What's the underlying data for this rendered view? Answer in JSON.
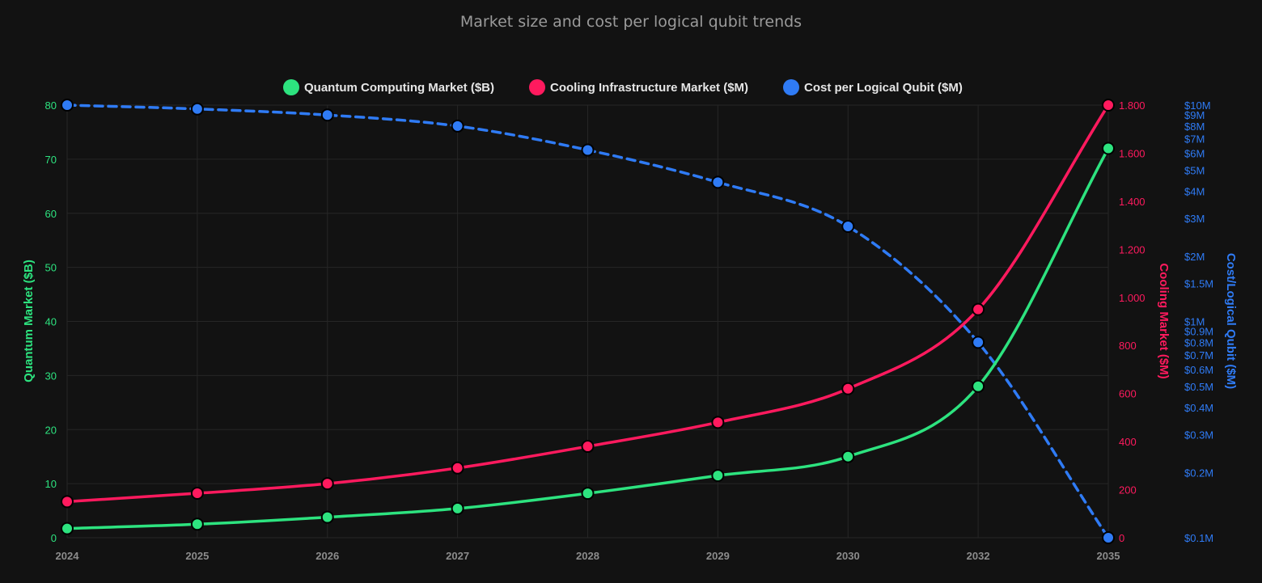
{
  "chart_data": {
    "type": "line",
    "title": "Market size and cost per logical qubit trends",
    "categories": [
      "2024",
      "2025",
      "2026",
      "2027",
      "2028",
      "2029",
      "2030",
      "2032",
      "2035"
    ],
    "series": [
      {
        "name": "Quantum Computing Market ($B)",
        "axis": "left",
        "color": "#2de37f",
        "dashed": false,
        "values": [
          1.7,
          2.5,
          3.8,
          5.4,
          8.2,
          11.5,
          15.0,
          28.0,
          72.0
        ]
      },
      {
        "name": "Cooling Infrastructure Market ($M)",
        "axis": "right1",
        "color": "#ff1a5e",
        "dashed": false,
        "values": [
          150,
          185,
          225,
          290,
          380,
          480,
          620,
          950,
          1800
        ]
      },
      {
        "name": "Cost per Logical Qubit ($M)",
        "axis": "right2",
        "color": "#2f7bf5",
        "dashed": true,
        "values": [
          10,
          9.6,
          9.0,
          8.0,
          6.2,
          4.4,
          2.75,
          0.8,
          0.1
        ]
      }
    ],
    "axes": {
      "left": {
        "label": "Quantum Market ($B)",
        "min": 0,
        "max": 80,
        "ticks": [
          0,
          10,
          20,
          30,
          40,
          50,
          60,
          70,
          80
        ],
        "tick_labels": [
          "0",
          "10",
          "20",
          "30",
          "40",
          "50",
          "60",
          "70",
          "80"
        ],
        "color": "#2de37f"
      },
      "right1": {
        "label": "Cooling Market ($M)",
        "min": 0,
        "max": 1800,
        "ticks": [
          0,
          200,
          400,
          600,
          800,
          1000,
          1200,
          1400,
          1600,
          1800
        ],
        "tick_labels": [
          "0",
          "200",
          "400",
          "600",
          "800",
          "1.000",
          "1.200",
          "1.400",
          "1.600",
          "1.800"
        ],
        "color": "#ff1a5e"
      },
      "right2": {
        "label": "Cost/Logical Qubit ($M)",
        "scale": "log",
        "min": 0.1,
        "max": 10,
        "ticks": [
          0.1,
          0.2,
          0.3,
          0.4,
          0.5,
          0.6,
          0.7,
          0.8,
          0.9,
          1,
          1.5,
          2,
          3,
          4,
          5,
          6,
          7,
          8,
          9,
          10
        ],
        "tick_labels": [
          "$0.1M",
          "$0.2M",
          "$0.3M",
          "$0.4M",
          "$0.5M",
          "$0.6M",
          "$0.7M",
          "$0.8M",
          "$0.9M",
          "$1M",
          "$1.5M",
          "$2M",
          "$3M",
          "$4M",
          "$5M",
          "$6M",
          "$7M",
          "$8M",
          "$9M",
          "$10M"
        ],
        "color": "#2f7bf5"
      }
    },
    "grid": true,
    "legend_position": "top"
  }
}
